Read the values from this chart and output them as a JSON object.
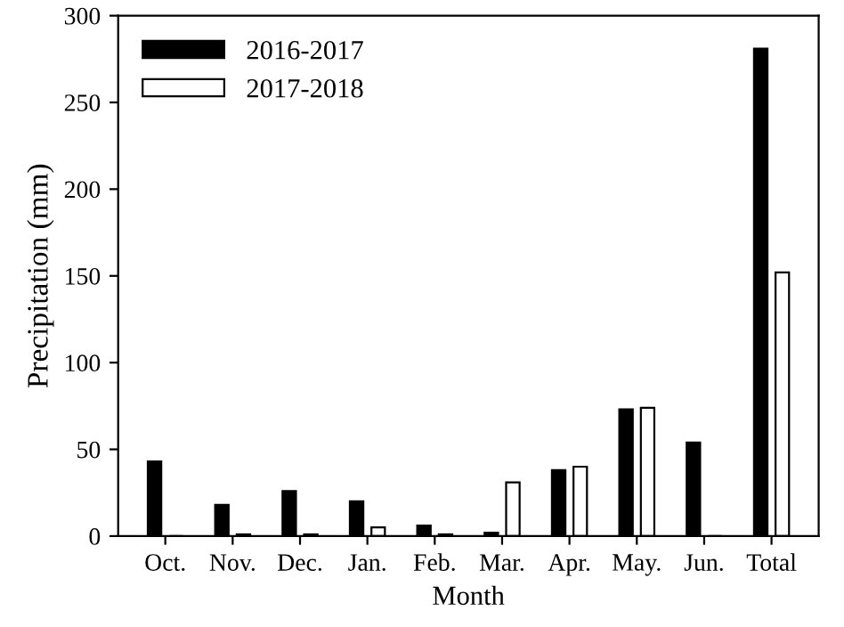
{
  "chart_data": {
    "type": "bar",
    "xlabel": "Month",
    "ylabel": "Precipitation (mm)",
    "categories": [
      "Oct.",
      "Nov.",
      "Dec.",
      "Jan.",
      "Feb.",
      "Mar.",
      "Apr.",
      "May.",
      "Jun.",
      "Total"
    ],
    "series": [
      {
        "name": "2016-2017",
        "color": "#000000",
        "values": [
          43,
          18,
          26,
          20,
          6,
          2,
          38,
          73,
          54,
          281
        ]
      },
      {
        "name": "2017-2018",
        "color": "#ffffff",
        "values": [
          0,
          1,
          1,
          5,
          1,
          31,
          40,
          74,
          0,
          152
        ]
      }
    ],
    "ylim": [
      0,
      300
    ],
    "yticks": [
      0,
      50,
      100,
      150,
      200,
      250,
      300
    ],
    "legend": "top left",
    "grid": false
  }
}
